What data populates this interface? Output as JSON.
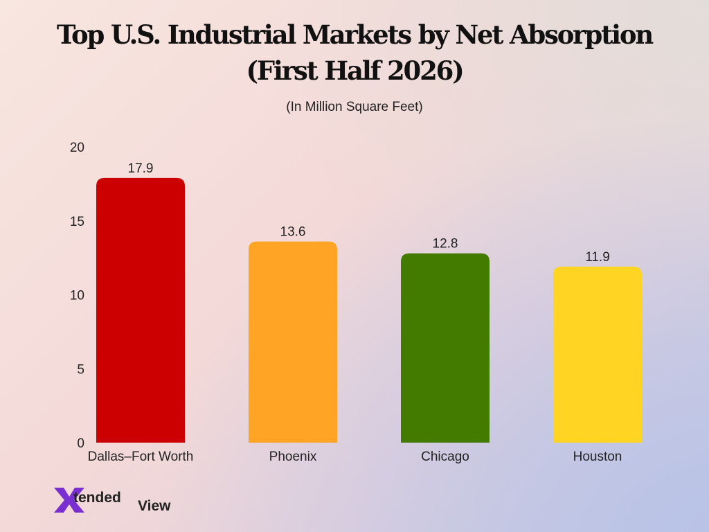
{
  "title_lines": [
    "Top U.S. Industrial Markets by Net Absorption",
    "(First Half 2026)"
  ],
  "subtitle": "(In Million Square Feet)",
  "logo": {
    "text": "XtendedView",
    "part1": "tended",
    "part2": "View"
  },
  "chart_data": {
    "type": "bar",
    "categories": [
      "Dallas–Fort Worth",
      "Phoenix",
      "Chicago",
      "Houston"
    ],
    "values": [
      17.9,
      13.6,
      12.8,
      11.9
    ],
    "colors": [
      "#cc0000",
      "#ffa424",
      "#437a00",
      "#ffd422"
    ],
    "title": "Top U.S. Industrial Markets by Net Absorption (First Half 2026)",
    "subtitle": "(In Million Square Feet)",
    "xlabel": "",
    "ylabel": "",
    "ylim": [
      0,
      20
    ],
    "yticks": [
      0,
      5,
      10,
      15,
      20
    ],
    "grid": false,
    "data_labels": true
  }
}
